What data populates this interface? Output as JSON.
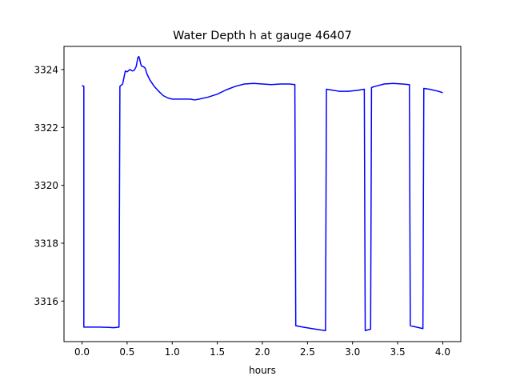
{
  "chart_data": {
    "type": "line",
    "title": "Water Depth h at gauge 46407",
    "xlabel": "hours",
    "ylabel": "",
    "xlim": [
      -0.2,
      4.2
    ],
    "ylim": [
      3314.6,
      3324.8
    ],
    "xticks": [
      0.0,
      0.5,
      1.0,
      1.5,
      2.0,
      2.5,
      3.0,
      3.5,
      4.0
    ],
    "xtick_labels": [
      "0.0",
      "0.5",
      "1.0",
      "1.5",
      "2.0",
      "2.5",
      "3.0",
      "3.5",
      "4.0"
    ],
    "yticks": [
      3316,
      3318,
      3320,
      3322,
      3324
    ],
    "ytick_labels": [
      "3316",
      "3318",
      "3320",
      "3322",
      "3324"
    ],
    "grid": false,
    "series": [
      {
        "color": "#0000ff",
        "x": [
          0.0,
          0.02,
          0.02,
          0.1,
          0.2,
          0.3,
          0.35,
          0.41,
          0.42,
          0.43,
          0.45,
          0.47,
          0.48,
          0.5,
          0.53,
          0.56,
          0.58,
          0.6,
          0.62,
          0.63,
          0.64,
          0.65,
          0.66,
          0.68,
          0.7,
          0.72,
          0.75,
          0.8,
          0.85,
          0.9,
          0.95,
          1.0,
          1.1,
          1.2,
          1.25,
          1.3,
          1.4,
          1.5,
          1.6,
          1.7,
          1.8,
          1.9,
          2.0,
          2.1,
          2.2,
          2.3,
          2.36,
          2.37,
          2.45,
          2.55,
          2.65,
          2.7,
          2.71,
          2.75,
          2.85,
          2.95,
          3.05,
          3.13,
          3.14,
          3.2,
          3.21,
          3.25,
          3.35,
          3.45,
          3.55,
          3.63,
          3.64,
          3.78,
          3.79,
          3.85,
          3.95,
          4.0
        ],
        "y": [
          3323.45,
          3323.42,
          3315.1,
          3315.1,
          3315.1,
          3315.09,
          3315.08,
          3315.1,
          3323.42,
          3323.45,
          3323.5,
          3323.8,
          3323.95,
          3323.92,
          3324.0,
          3323.95,
          3323.98,
          3324.1,
          3324.42,
          3324.45,
          3324.35,
          3324.2,
          3324.12,
          3324.1,
          3324.05,
          3323.85,
          3323.65,
          3323.42,
          3323.25,
          3323.1,
          3323.02,
          3322.98,
          3322.98,
          3322.98,
          3322.95,
          3322.98,
          3323.05,
          3323.15,
          3323.3,
          3323.42,
          3323.5,
          3323.52,
          3323.5,
          3323.48,
          3323.5,
          3323.5,
          3323.48,
          3315.15,
          3315.1,
          3315.05,
          3315.0,
          3314.98,
          3323.32,
          3323.3,
          3323.25,
          3323.25,
          3323.28,
          3323.32,
          3314.98,
          3315.03,
          3323.38,
          3323.42,
          3323.5,
          3323.52,
          3323.5,
          3323.48,
          3315.15,
          3315.05,
          3323.35,
          3323.32,
          3323.25,
          3323.2
        ]
      }
    ]
  }
}
